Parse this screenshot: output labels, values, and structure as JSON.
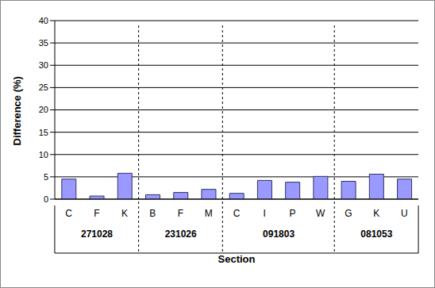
{
  "chart_data": {
    "type": "bar",
    "x_label": "Section",
    "y_label": "Difference (%)",
    "groups": [
      {
        "label": "271028",
        "categories": [
          "C",
          "F",
          "K"
        ],
        "values": [
          4.5,
          0.7,
          5.8
        ]
      },
      {
        "label": "231026",
        "categories": [
          "B",
          "F",
          "M"
        ],
        "values": [
          1.0,
          1.5,
          2.2
        ]
      },
      {
        "label": "091803",
        "categories": [
          "C",
          "I",
          "P",
          "W"
        ],
        "values": [
          1.3,
          4.2,
          3.8,
          5.1
        ]
      },
      {
        "label": "081053",
        "categories": [
          "G",
          "K",
          "U"
        ],
        "values": [
          4.0,
          5.6,
          4.5
        ]
      }
    ],
    "color": "#9999ff",
    "ylim": [
      0,
      40
    ],
    "yticks": [
      0,
      5,
      10,
      15,
      20,
      25,
      30,
      35,
      40
    ],
    "grid": true
  }
}
